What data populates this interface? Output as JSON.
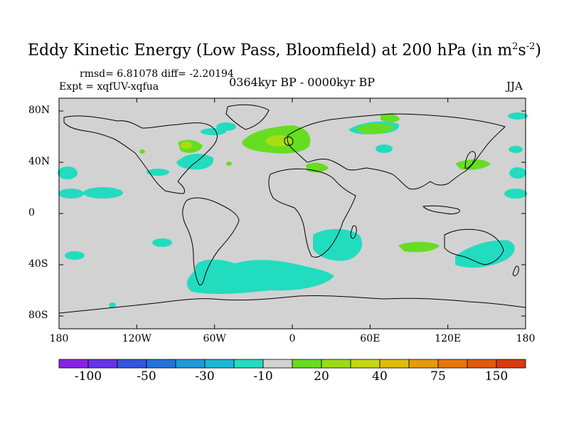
{
  "title": {
    "main": "Eddy Kinetic Energy (Low Pass, Bloomfield) at 200 hPa (in m",
    "exp1": "2",
    "mid": "s",
    "exp2": "-2",
    "close": ")"
  },
  "stats_text": "rmsd= 6.81078 diff= -2.20194",
  "experiment": "Expt = xqfUV-xqfua",
  "period": "0364kyr BP - 0000kyr BP",
  "season": "JJA",
  "lat_labels": [
    "80N",
    "40N",
    "0",
    "40S",
    "80S"
  ],
  "lat_values": [
    80,
    40,
    0,
    -40,
    -80
  ],
  "lon_labels": [
    "180",
    "120W",
    "60W",
    "0",
    "60E",
    "120E",
    "180"
  ],
  "lon_values": [
    -180,
    -120,
    -60,
    0,
    60,
    120,
    180
  ],
  "colors": {
    "background": "#d2d2d2",
    "neg_10_30": "#22dcc0",
    "pos_10_20": "#66dd22",
    "pos_20_30": "#aadd11",
    "coast": "#000000"
  },
  "colorbar": {
    "colors": [
      "#8a22e6",
      "#6633e8",
      "#3355e0",
      "#1e74d8",
      "#1e9ad8",
      "#1ab8d6",
      "#22dcc0",
      "#d2d2d2",
      "#66dd22",
      "#99dd11",
      "#c6d611",
      "#e0bb08",
      "#e89a06",
      "#e6780a",
      "#e05a0c",
      "#d83a0e"
    ],
    "labels": [
      "-100",
      "-50",
      "-30",
      "-10",
      "20",
      "40",
      "75",
      "150"
    ],
    "label_after_box": [
      1,
      3,
      5,
      7,
      9,
      11,
      13,
      15
    ]
  }
}
